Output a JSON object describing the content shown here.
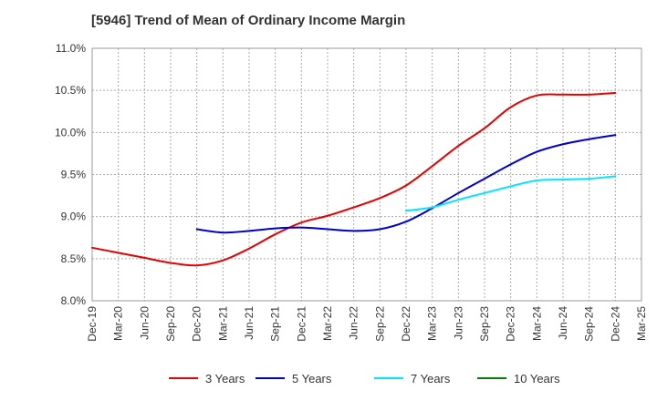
{
  "chart_data": {
    "type": "line",
    "title": "[5946]  Trend of Mean of Ordinary Income Margin",
    "xlabel": "",
    "ylabel": "",
    "x_ticks": [
      "Dec-19",
      "Mar-20",
      "Jun-20",
      "Sep-20",
      "Dec-20",
      "Mar-21",
      "Jun-21",
      "Sep-21",
      "Dec-21",
      "Mar-22",
      "Jun-22",
      "Sep-22",
      "Dec-22",
      "Mar-23",
      "Jun-23",
      "Sep-23",
      "Dec-23",
      "Mar-24",
      "Jun-24",
      "Sep-24",
      "Dec-24",
      "Mar-25"
    ],
    "y_ticks": [
      "8.0%",
      "8.5%",
      "9.0%",
      "9.5%",
      "10.0%",
      "10.5%",
      "11.0%"
    ],
    "ylim": [
      8.0,
      11.0
    ],
    "grid": true,
    "legend_position": "bottom",
    "series": [
      {
        "name": "3 Years",
        "color": "#e60000",
        "start_index": 0,
        "values": [
          8.63,
          8.57,
          8.51,
          8.45,
          8.42,
          8.48,
          8.62,
          8.79,
          8.93,
          9.01,
          9.11,
          9.22,
          9.37,
          9.6,
          9.84,
          10.05,
          10.3,
          10.44,
          10.45,
          10.45,
          10.47
        ]
      },
      {
        "name": "5 Years",
        "color": "#0000cc",
        "start_index": 4,
        "values": [
          8.85,
          8.81,
          8.83,
          8.86,
          8.87,
          8.85,
          8.83,
          8.85,
          8.94,
          9.1,
          9.28,
          9.45,
          9.62,
          9.77,
          9.86,
          9.92,
          9.97
        ]
      },
      {
        "name": "7 Years",
        "color": "#00e5ff",
        "start_index": 12,
        "values": [
          9.07,
          9.11,
          9.2,
          9.28,
          9.36,
          9.43,
          9.44,
          9.45,
          9.48
        ]
      },
      {
        "name": "10 Years",
        "color": "#008000",
        "start_index": 0,
        "values": []
      }
    ]
  }
}
